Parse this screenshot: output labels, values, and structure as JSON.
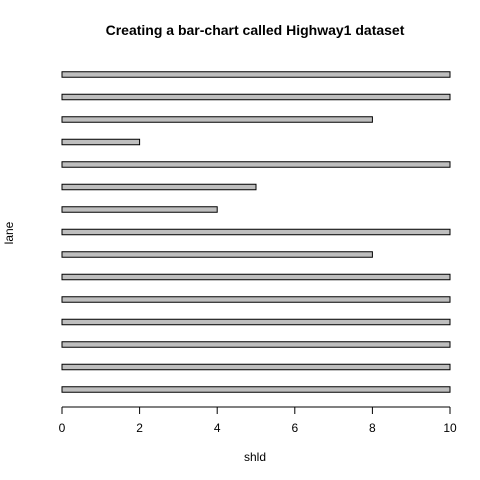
{
  "chart_data": {
    "type": "bar",
    "orientation": "horizontal",
    "title": "Creating a bar-chart called Highway1 dataset",
    "xlabel": "shld",
    "ylabel": "lane",
    "values": [
      10,
      10,
      8,
      2,
      10,
      5,
      4,
      10,
      8,
      10,
      10,
      10,
      10,
      10,
      10
    ],
    "xlim": [
      0,
      10
    ],
    "x_ticks": [
      "0",
      "2",
      "4",
      "6",
      "8",
      "10"
    ],
    "bar_color": "#bebebe",
    "grid": false,
    "legend": "none"
  }
}
